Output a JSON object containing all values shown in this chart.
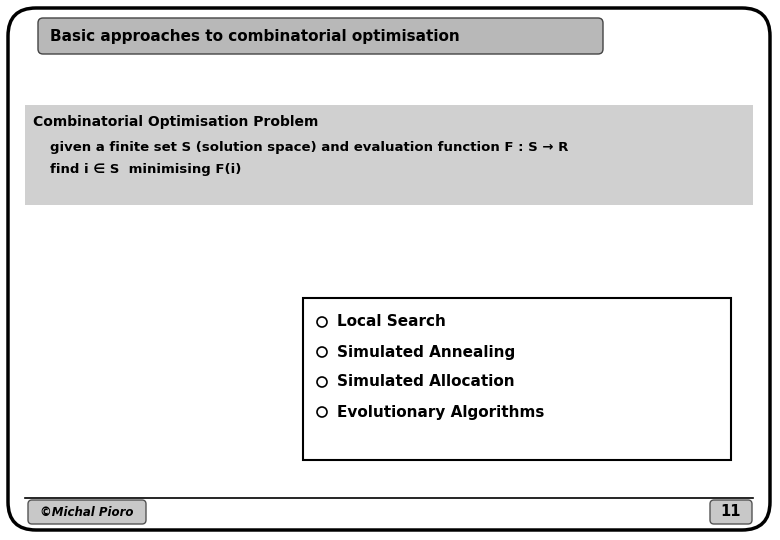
{
  "bg_color": "#ffffff",
  "title_text": "Basic approaches to combinatorial optimisation",
  "title_bg": "#b8b8b8",
  "title_font_size": 11,
  "problem_bg": "#d0d0d0",
  "problem_title": "Combinatorial Optimisation Problem",
  "problem_line1": "given a finite set S (solution space) and evaluation function F : S → R",
  "problem_line2": "find i ∈ S  minimising F(i)",
  "problem_font_size": 9.5,
  "problem_title_font_size": 10,
  "bullet_items": [
    "Local Search",
    "Simulated Annealing",
    "Simulated Allocation",
    "Evolutionary Algorithms"
  ],
  "bullet_font_size": 11,
  "footer_text": "©Michal Pioro",
  "footer_page": "11",
  "footer_font_size": 8.5
}
